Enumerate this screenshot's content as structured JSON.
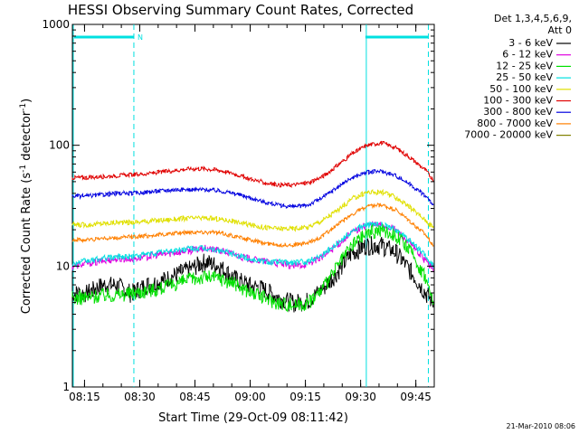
{
  "chart_data": {
    "type": "line",
    "title": "HESSI Observing Summary Count Rates, Corrected",
    "xlabel": "Start Time (29-Oct-09 08:11:42)",
    "ylabel_main": "Corrected Count Rate (s",
    "ylabel_sup1": "-1",
    "ylabel_mid": " detector",
    "ylabel_sup2": "-1",
    "ylabel_end": ")",
    "yscale": "log",
    "ylim": [
      1,
      1000
    ],
    "xlim": [
      "08:11:42",
      "09:50:00"
    ],
    "x_tick_labels": [
      "08:15",
      "08:30",
      "08:45",
      "09:00",
      "09:15",
      "09:30",
      "09:45"
    ],
    "x_tick_minutes": [
      3.3,
      18.3,
      33.3,
      48.3,
      63.3,
      78.3,
      93.3
    ],
    "y_tick_labels": [
      "1",
      "10",
      "100",
      "1000"
    ],
    "y_tick_values": [
      1,
      10,
      100,
      1000
    ],
    "x_max_minutes": 98.3,
    "legend_header": [
      "Det 1,3,4,5,6,9,",
      "Att 0"
    ],
    "legend_position": "right",
    "series": [
      {
        "name": "3 - 6 keV",
        "color": "#000000",
        "values": [
          6,
          6,
          7,
          7,
          6,
          7,
          7.5,
          8.5,
          9.5,
          11,
          10,
          8,
          7,
          6.5,
          5.5,
          5,
          5.2,
          6.5,
          9,
          13,
          15,
          15,
          13,
          9,
          6,
          5
        ]
      },
      {
        "name": "6 - 12 keV",
        "color": "#e000e0",
        "values": [
          10,
          10.5,
          11,
          11.5,
          11.5,
          12,
          12.5,
          13,
          13.5,
          14,
          13.5,
          12.5,
          11.5,
          11,
          10.5,
          10,
          10.5,
          12,
          15,
          19,
          22,
          22,
          20,
          15,
          11,
          9.5
        ]
      },
      {
        "name": "12 - 25 keV",
        "color": "#00e000",
        "values": [
          5.5,
          5.5,
          5.8,
          5.8,
          6,
          6.3,
          6.6,
          7.2,
          7.8,
          8.2,
          8,
          7.2,
          6.2,
          5.5,
          5,
          4.8,
          5,
          6.5,
          10,
          15,
          19,
          20,
          18,
          13,
          8,
          5
        ]
      },
      {
        "name": "25 - 50 keV",
        "color": "#00e0e0",
        "values": [
          10.5,
          11,
          11.5,
          12,
          12,
          12.5,
          13,
          13.5,
          14,
          14,
          13.5,
          12.5,
          11.5,
          11,
          10.8,
          10.7,
          11,
          12.5,
          15.5,
          19.5,
          22,
          22,
          20,
          16,
          12,
          10
        ]
      },
      {
        "name": "50 - 100 keV",
        "color": "#e0e000",
        "values": [
          22,
          22,
          22.5,
          23,
          23,
          23.5,
          24,
          24.5,
          25,
          25,
          24.5,
          23.5,
          22,
          21,
          20.5,
          20.5,
          21,
          24,
          29,
          36,
          41,
          41,
          37,
          30,
          24,
          21
        ]
      },
      {
        "name": "100 - 300 keV",
        "color": "#e00000",
        "values": [
          54,
          54,
          55,
          56,
          57,
          58,
          60,
          62,
          64,
          64,
          62,
          58,
          53,
          49,
          47,
          47,
          49,
          55,
          68,
          85,
          100,
          105,
          95,
          78,
          62,
          52
        ]
      },
      {
        "name": "300 - 800 keV",
        "color": "#0000e0",
        "values": [
          38,
          38,
          39,
          40,
          40,
          41,
          42,
          43,
          43,
          43,
          42,
          40,
          37,
          34,
          32,
          31,
          32,
          37,
          45,
          54,
          60,
          61,
          56,
          47,
          38,
          32
        ]
      },
      {
        "name": "800 - 7000 keV",
        "color": "#ff8000",
        "values": [
          16.5,
          16.5,
          17,
          17,
          17.5,
          17.8,
          18.2,
          18.7,
          19.2,
          19.2,
          18.8,
          17.8,
          16.5,
          15.5,
          15,
          15,
          15.5,
          17.8,
          22,
          27,
          31,
          32,
          29,
          23,
          18,
          15
        ]
      },
      {
        "name": "7000 - 20000 keV",
        "color": "#808000",
        "values": []
      }
    ],
    "x_minutes": [
      0,
      4,
      8,
      12,
      16,
      20,
      24,
      28,
      32,
      36,
      40,
      44,
      48,
      52,
      56,
      60,
      64,
      68,
      72,
      76,
      80,
      84,
      88,
      92,
      96,
      98
    ],
    "night_marker": "N",
    "night_bar_minutes": [
      0,
      16.7
    ],
    "day_bar_minutes": [
      79.6,
      96.7
    ],
    "cyan_solid_lines_minutes": [
      0,
      79.6
    ],
    "cyan_dashed_lines_minutes": [
      16.7,
      96.7
    ],
    "footer_date": "21-Mar-2010 08:06"
  }
}
